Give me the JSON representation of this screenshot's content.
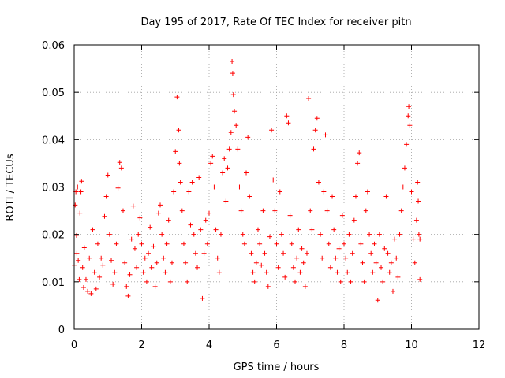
{
  "chart_data": {
    "type": "scatter",
    "title": "Day 195 of 2017, Rate Of TEC Index for receiver pitn",
    "xlabel": "GPS time / hours",
    "ylabel": "ROTI / TECUs",
    "xlim": [
      0,
      12
    ],
    "ylim": [
      0,
      0.06
    ],
    "x_ticks": [
      0,
      2,
      4,
      6,
      8,
      10,
      12
    ],
    "x_tick_labels": [
      "0",
      "2",
      "4",
      "6",
      "8",
      "10",
      "12"
    ],
    "y_ticks": [
      0,
      0.01,
      0.02,
      0.03,
      0.04,
      0.05,
      0.06
    ],
    "y_tick_labels": [
      "0",
      "0.01",
      "0.02",
      "0.03",
      "0.04",
      "0.05",
      "0.06"
    ],
    "grid": true,
    "marker": "+",
    "color": "#ff0000",
    "data_x_range": [
      0,
      10.25
    ],
    "points": [
      [
        0.0,
        0.0135
      ],
      [
        0.03,
        0.0262
      ],
      [
        0.05,
        0.029
      ],
      [
        0.07,
        0.0198
      ],
      [
        0.08,
        0.016
      ],
      [
        0.1,
        0.03
      ],
      [
        0.12,
        0.0145
      ],
      [
        0.15,
        0.0105
      ],
      [
        0.17,
        0.0245
      ],
      [
        0.2,
        0.029
      ],
      [
        0.22,
        0.0312
      ],
      [
        0.25,
        0.013
      ],
      [
        0.28,
        0.0088
      ],
      [
        0.3,
        0.0172
      ],
      [
        0.35,
        0.0105
      ],
      [
        0.4,
        0.008
      ],
      [
        0.45,
        0.015
      ],
      [
        0.5,
        0.0075
      ],
      [
        0.55,
        0.021
      ],
      [
        0.6,
        0.012
      ],
      [
        0.65,
        0.0085
      ],
      [
        0.7,
        0.018
      ],
      [
        0.75,
        0.011
      ],
      [
        0.8,
        0.015
      ],
      [
        0.85,
        0.0135
      ],
      [
        0.9,
        0.0238
      ],
      [
        0.95,
        0.028
      ],
      [
        1.0,
        0.0325
      ],
      [
        1.05,
        0.02
      ],
      [
        1.1,
        0.0145
      ],
      [
        1.15,
        0.0095
      ],
      [
        1.2,
        0.012
      ],
      [
        1.25,
        0.018
      ],
      [
        1.3,
        0.0298
      ],
      [
        1.35,
        0.0352
      ],
      [
        1.4,
        0.034
      ],
      [
        1.45,
        0.025
      ],
      [
        1.5,
        0.014
      ],
      [
        1.55,
        0.009
      ],
      [
        1.6,
        0.007
      ],
      [
        1.65,
        0.0115
      ],
      [
        1.7,
        0.019
      ],
      [
        1.75,
        0.026
      ],
      [
        1.8,
        0.017
      ],
      [
        1.85,
        0.013
      ],
      [
        1.9,
        0.02
      ],
      [
        1.95,
        0.0235
      ],
      [
        2.0,
        0.018
      ],
      [
        2.05,
        0.012
      ],
      [
        2.1,
        0.015
      ],
      [
        2.15,
        0.01
      ],
      [
        2.2,
        0.016
      ],
      [
        2.25,
        0.0215
      ],
      [
        2.3,
        0.013
      ],
      [
        2.35,
        0.0175
      ],
      [
        2.4,
        0.009
      ],
      [
        2.45,
        0.014
      ],
      [
        2.5,
        0.0245
      ],
      [
        2.55,
        0.0262
      ],
      [
        2.6,
        0.02
      ],
      [
        2.65,
        0.015
      ],
      [
        2.7,
        0.012
      ],
      [
        2.75,
        0.018
      ],
      [
        2.8,
        0.023
      ],
      [
        2.85,
        0.01
      ],
      [
        2.9,
        0.014
      ],
      [
        2.95,
        0.029
      ],
      [
        3.0,
        0.0375
      ],
      [
        3.05,
        0.049
      ],
      [
        3.1,
        0.042
      ],
      [
        3.12,
        0.035
      ],
      [
        3.15,
        0.031
      ],
      [
        3.2,
        0.025
      ],
      [
        3.25,
        0.018
      ],
      [
        3.3,
        0.014
      ],
      [
        3.35,
        0.01
      ],
      [
        3.4,
        0.029
      ],
      [
        3.45,
        0.022
      ],
      [
        3.5,
        0.031
      ],
      [
        3.55,
        0.02
      ],
      [
        3.6,
        0.016
      ],
      [
        3.65,
        0.013
      ],
      [
        3.7,
        0.032
      ],
      [
        3.75,
        0.021
      ],
      [
        3.8,
        0.0065
      ],
      [
        3.85,
        0.016
      ],
      [
        3.9,
        0.023
      ],
      [
        3.95,
        0.018
      ],
      [
        4.0,
        0.0245
      ],
      [
        4.05,
        0.035
      ],
      [
        4.1,
        0.0365
      ],
      [
        4.15,
        0.03
      ],
      [
        4.2,
        0.021
      ],
      [
        4.25,
        0.015
      ],
      [
        4.3,
        0.012
      ],
      [
        4.35,
        0.02
      ],
      [
        4.4,
        0.033
      ],
      [
        4.45,
        0.036
      ],
      [
        4.5,
        0.027
      ],
      [
        4.55,
        0.034
      ],
      [
        4.6,
        0.038
      ],
      [
        4.65,
        0.0415
      ],
      [
        4.68,
        0.0565
      ],
      [
        4.7,
        0.054
      ],
      [
        4.72,
        0.0495
      ],
      [
        4.75,
        0.046
      ],
      [
        4.8,
        0.043
      ],
      [
        4.85,
        0.038
      ],
      [
        4.9,
        0.03
      ],
      [
        4.95,
        0.025
      ],
      [
        5.0,
        0.02
      ],
      [
        5.05,
        0.018
      ],
      [
        5.1,
        0.033
      ],
      [
        5.15,
        0.0405
      ],
      [
        5.2,
        0.028
      ],
      [
        5.25,
        0.016
      ],
      [
        5.3,
        0.012
      ],
      [
        5.35,
        0.01
      ],
      [
        5.4,
        0.014
      ],
      [
        5.45,
        0.021
      ],
      [
        5.5,
        0.018
      ],
      [
        5.55,
        0.0135
      ],
      [
        5.6,
        0.025
      ],
      [
        5.65,
        0.016
      ],
      [
        5.7,
        0.012
      ],
      [
        5.75,
        0.009
      ],
      [
        5.8,
        0.0195
      ],
      [
        5.85,
        0.042
      ],
      [
        5.9,
        0.0315
      ],
      [
        5.95,
        0.025
      ],
      [
        6.0,
        0.018
      ],
      [
        6.05,
        0.013
      ],
      [
        6.1,
        0.029
      ],
      [
        6.15,
        0.02
      ],
      [
        6.2,
        0.016
      ],
      [
        6.25,
        0.011
      ],
      [
        6.3,
        0.045
      ],
      [
        6.35,
        0.0435
      ],
      [
        6.4,
        0.024
      ],
      [
        6.45,
        0.018
      ],
      [
        6.5,
        0.013
      ],
      [
        6.55,
        0.01
      ],
      [
        6.6,
        0.015
      ],
      [
        6.65,
        0.021
      ],
      [
        6.7,
        0.012
      ],
      [
        6.75,
        0.017
      ],
      [
        6.8,
        0.014
      ],
      [
        6.85,
        0.009
      ],
      [
        6.9,
        0.016
      ],
      [
        6.95,
        0.0487
      ],
      [
        7.0,
        0.025
      ],
      [
        7.05,
        0.021
      ],
      [
        7.1,
        0.038
      ],
      [
        7.15,
        0.042
      ],
      [
        7.2,
        0.0445
      ],
      [
        7.25,
        0.031
      ],
      [
        7.3,
        0.02
      ],
      [
        7.35,
        0.015
      ],
      [
        7.4,
        0.029
      ],
      [
        7.45,
        0.041
      ],
      [
        7.5,
        0.025
      ],
      [
        7.55,
        0.018
      ],
      [
        7.6,
        0.013
      ],
      [
        7.65,
        0.028
      ],
      [
        7.7,
        0.021
      ],
      [
        7.75,
        0.015
      ],
      [
        7.8,
        0.012
      ],
      [
        7.85,
        0.017
      ],
      [
        7.9,
        0.01
      ],
      [
        7.95,
        0.024
      ],
      [
        8.0,
        0.018
      ],
      [
        8.05,
        0.015
      ],
      [
        8.1,
        0.012
      ],
      [
        8.15,
        0.02
      ],
      [
        8.2,
        0.01
      ],
      [
        8.25,
        0.016
      ],
      [
        8.3,
        0.023
      ],
      [
        8.35,
        0.028
      ],
      [
        8.4,
        0.035
      ],
      [
        8.45,
        0.0372
      ],
      [
        8.5,
        0.018
      ],
      [
        8.55,
        0.014
      ],
      [
        8.6,
        0.01
      ],
      [
        8.65,
        0.025
      ],
      [
        8.7,
        0.029
      ],
      [
        8.75,
        0.02
      ],
      [
        8.8,
        0.016
      ],
      [
        8.85,
        0.012
      ],
      [
        8.9,
        0.018
      ],
      [
        8.95,
        0.014
      ],
      [
        9.0,
        0.0061
      ],
      [
        9.05,
        0.02
      ],
      [
        9.1,
        0.013
      ],
      [
        9.15,
        0.01
      ],
      [
        9.2,
        0.017
      ],
      [
        9.25,
        0.028
      ],
      [
        9.3,
        0.016
      ],
      [
        9.35,
        0.012
      ],
      [
        9.4,
        0.014
      ],
      [
        9.45,
        0.008
      ],
      [
        9.5,
        0.019
      ],
      [
        9.55,
        0.015
      ],
      [
        9.6,
        0.011
      ],
      [
        9.65,
        0.02
      ],
      [
        9.7,
        0.025
      ],
      [
        9.75,
        0.03
      ],
      [
        9.8,
        0.034
      ],
      [
        9.85,
        0.039
      ],
      [
        9.9,
        0.045
      ],
      [
        9.92,
        0.047
      ],
      [
        9.95,
        0.043
      ],
      [
        10.0,
        0.029
      ],
      [
        10.05,
        0.019
      ],
      [
        10.1,
        0.014
      ],
      [
        10.15,
        0.023
      ],
      [
        10.18,
        0.031
      ],
      [
        10.2,
        0.027
      ],
      [
        10.22,
        0.02
      ],
      [
        10.25,
        0.0105
      ],
      [
        10.25,
        0.019
      ]
    ]
  }
}
